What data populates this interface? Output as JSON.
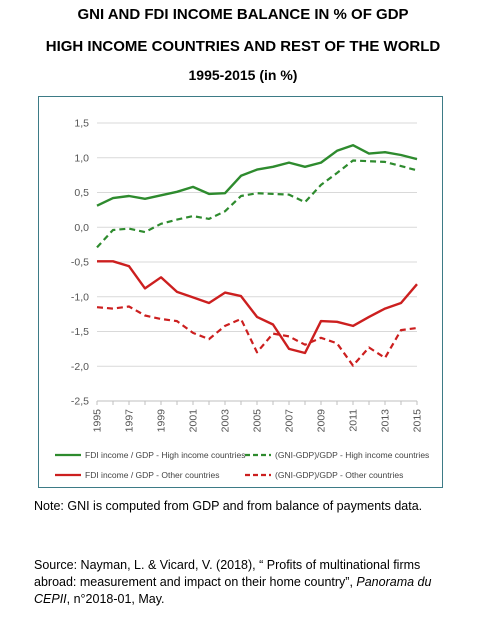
{
  "titles": {
    "line1": "GNI AND FDI INCOME BALANCE IN % OF GDP",
    "line2": "HIGH INCOME COUNTRIES AND REST OF THE WORLD",
    "line3": "1995-2015 (in %)"
  },
  "note": "Note: GNI is computed from GDP and from balance of payments data.",
  "source": {
    "prefix": "Source: Nayman, L. & Vicard, V. (2018), “ Profits of multinational firms abroad: measurement and impact on their home country”, ",
    "journal": "Panorama du CEPII",
    "suffix": ", n°2018-01, May."
  },
  "chart_data": {
    "type": "line",
    "x": [
      1995,
      1996,
      1997,
      1998,
      1999,
      2000,
      2001,
      2002,
      2003,
      2004,
      2005,
      2006,
      2007,
      2008,
      2009,
      2010,
      2011,
      2012,
      2013,
      2014,
      2015
    ],
    "x_tick_labels": [
      "1995",
      "1997",
      "1999",
      "2001",
      "2003",
      "2005",
      "2007",
      "2009",
      "2011",
      "2013",
      "2015"
    ],
    "y_tick_labels": [
      "1,5",
      "1,0",
      "0,5",
      "0,0",
      "-0,5",
      "-1,0",
      "-1,5",
      "-2,0",
      "-2,5"
    ],
    "ylim": [
      -2.5,
      1.5
    ],
    "grid": "horizontal",
    "series": [
      {
        "name": "FDI income / GDP - High income countries",
        "color": "#2e8b2e",
        "dash": false,
        "values": [
          0.31,
          0.42,
          0.45,
          0.41,
          0.46,
          0.51,
          0.58,
          0.48,
          0.49,
          0.74,
          0.83,
          0.87,
          0.93,
          0.87,
          0.93,
          1.1,
          1.18,
          1.06,
          1.08,
          1.04,
          0.98
        ]
      },
      {
        "name": "(GNI-GDP)/GDP - High income countries",
        "color": "#2e8b2e",
        "dash": true,
        "values": [
          -0.29,
          -0.04,
          -0.02,
          -0.07,
          0.05,
          0.11,
          0.16,
          0.12,
          0.23,
          0.45,
          0.49,
          0.48,
          0.47,
          0.36,
          0.61,
          0.78,
          0.96,
          0.95,
          0.94,
          0.88,
          0.82
        ]
      },
      {
        "name": "FDI income / GDP - Other countries",
        "color": "#cc1f1f",
        "dash": false,
        "values": [
          -0.49,
          -0.49,
          -0.56,
          -0.88,
          -0.72,
          -0.93,
          -1.01,
          -1.09,
          -0.94,
          -0.99,
          -1.29,
          -1.4,
          -1.75,
          -1.81,
          -1.35,
          -1.36,
          -1.42,
          -1.29,
          -1.17,
          -1.09,
          -0.82
        ]
      },
      {
        "name": "(GNI-GDP)/GDP - Other countries",
        "color": "#cc1f1f",
        "dash": true,
        "values": [
          -1.15,
          -1.17,
          -1.14,
          -1.27,
          -1.32,
          -1.35,
          -1.52,
          -1.61,
          -1.42,
          -1.32,
          -1.8,
          -1.53,
          -1.57,
          -1.69,
          -1.59,
          -1.67,
          -1.99,
          -1.73,
          -1.88,
          -1.48,
          -1.45
        ]
      }
    ]
  }
}
